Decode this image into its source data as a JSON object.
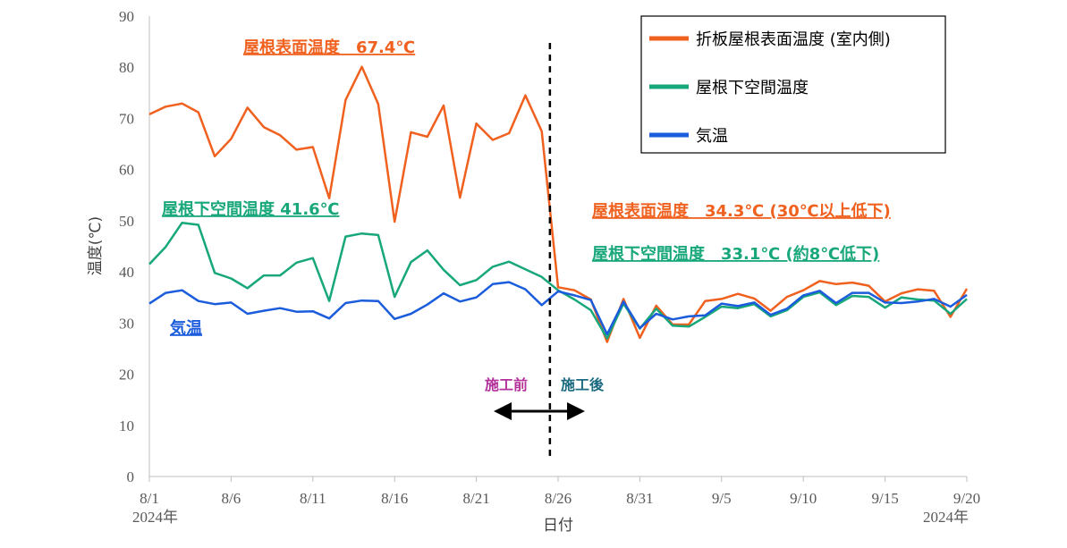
{
  "chart_data": {
    "type": "line",
    "xlabel": "日付",
    "ylabel": "温度(℃)",
    "ylim": [
      0,
      90
    ],
    "yticks": [
      0,
      10,
      20,
      30,
      40,
      50,
      60,
      70,
      80,
      90
    ],
    "grid": false,
    "legend_position": "top-right",
    "x_start_label": "8/1",
    "x_end_label": "9/20",
    "x_tick_labels": [
      "8/1",
      "8/6",
      "8/11",
      "8/16",
      "8/21",
      "8/26",
      "8/31",
      "9/5",
      "9/10",
      "9/15",
      "9/20"
    ],
    "year_start": "2024年",
    "year_end": "2024年",
    "series": [
      {
        "name": "折板屋根表面温度 (室内側)",
        "color": "#f0601e",
        "values": [
          70.8,
          72.3,
          72.9,
          71.2,
          62.6,
          66.0,
          72.1,
          68.3,
          66.7,
          63.9,
          64.4,
          54.4,
          73.6,
          80.1,
          72.8,
          49.8,
          67.3,
          66.4,
          72.5,
          54.5,
          69.0,
          65.8,
          67.1,
          74.5,
          67.5,
          37.0,
          36.4,
          34.6,
          26.3,
          34.7,
          27.1,
          33.4,
          29.7,
          29.7,
          34.3,
          34.7,
          35.7,
          34.8,
          32.4,
          35.1,
          36.4,
          38.2,
          37.6,
          37.9,
          37.3,
          34.2,
          35.8,
          36.6,
          36.3,
          31.2,
          36.7
        ]
      },
      {
        "name": "屋根下空間温度",
        "color": "#17a77a",
        "values": [
          41.5,
          44.9,
          49.6,
          49.2,
          39.8,
          38.7,
          36.8,
          39.3,
          39.3,
          41.8,
          42.7,
          34.3,
          46.9,
          47.5,
          47.2,
          35.1,
          41.9,
          44.2,
          40.4,
          37.4,
          38.4,
          41.0,
          42.0,
          40.5,
          39.0,
          36.4,
          34.6,
          32.5,
          27.0,
          33.8,
          28.9,
          32.8,
          29.5,
          29.3,
          31.2,
          33.2,
          32.9,
          33.7,
          31.3,
          32.5,
          35.1,
          36.0,
          33.5,
          35.3,
          35.1,
          33.0,
          35.0,
          34.6,
          34.4,
          31.8,
          34.7
        ]
      },
      {
        "name": "気温",
        "color": "#1a5cdc",
        "values": [
          33.8,
          35.9,
          36.4,
          34.3,
          33.7,
          34.0,
          31.8,
          32.4,
          32.9,
          32.2,
          32.3,
          30.9,
          33.9,
          34.4,
          34.3,
          30.8,
          31.8,
          33.6,
          35.8,
          34.2,
          35.0,
          37.6,
          38.0,
          36.6,
          33.5,
          36.2,
          35.4,
          34.5,
          27.8,
          34.2,
          29.0,
          31.8,
          30.7,
          31.3,
          31.5,
          33.8,
          33.3,
          34.0,
          31.6,
          32.8,
          35.4,
          36.3,
          33.9,
          35.9,
          35.9,
          34.0,
          33.9,
          34.2,
          34.7,
          33.2,
          35.5
        ]
      }
    ],
    "annotations": {
      "roof_before": "屋根表面温度　67.4℃",
      "under_before": "屋根下空間温度  41.6℃",
      "air": "気温",
      "roof_after": "屋根表面温度　34.3℃ (30℃以上低下)",
      "under_after": "屋根下空間温度　33.1℃ (約8℃低下)",
      "before_label": "施工前",
      "after_label": "施工後"
    },
    "annotation_colors": {
      "roof": "#f0601e",
      "under": "#17a77a",
      "air": "#1a5cdc",
      "before": "#b3309b",
      "after": "#1a6a80"
    },
    "divider_day_index": 24.5
  }
}
